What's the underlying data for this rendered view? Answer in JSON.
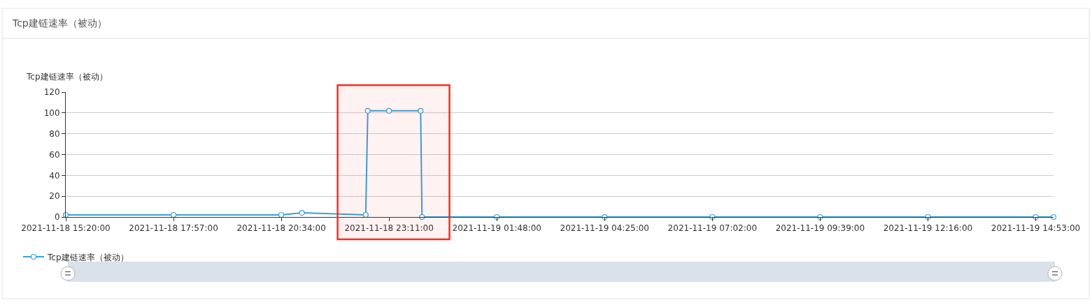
{
  "chart_data": {
    "type": "line",
    "title": "Tcp建链速率（被动）",
    "ylabel": "Tcp建链速率（被动）",
    "x": [
      "2021-11-18T15:20",
      "2021-11-18T17:57",
      "2021-11-18T20:34",
      "2021-11-18T21:04",
      "2021-11-18T22:37",
      "2021-11-18T22:40",
      "2021-11-18T23:11",
      "2021-11-18T23:57",
      "2021-11-18T23:59",
      "2021-11-19T01:48",
      "2021-11-19T04:25",
      "2021-11-19T07:02",
      "2021-11-19T09:39",
      "2021-11-19T12:16",
      "2021-11-19T14:53",
      "2021-11-19T15:19"
    ],
    "series": [
      {
        "name": "Tcp建链速率（被动）",
        "color": "#37a2da",
        "values": [
          2,
          2,
          2,
          4,
          2,
          102,
          102,
          102,
          0,
          0,
          0,
          0,
          0,
          0,
          0,
          0
        ]
      }
    ],
    "xlim": [
      "2021-11-18T15:20",
      "2021-11-19T15:19"
    ],
    "xticks": [
      {
        "value": "2021-11-18T15:20",
        "label": "2021-11-18 15:20:00"
      },
      {
        "value": "2021-11-18T17:57",
        "label": "2021-11-18 17:57:00"
      },
      {
        "value": "2021-11-18T20:34",
        "label": "2021-11-18 20:34:00"
      },
      {
        "value": "2021-11-18T23:11",
        "label": "2021-11-18 23:11:00"
      },
      {
        "value": "2021-11-19T01:48",
        "label": "2021-11-19 01:48:00"
      },
      {
        "value": "2021-11-19T04:25",
        "label": "2021-11-19 04:25:00"
      },
      {
        "value": "2021-11-19T07:02",
        "label": "2021-11-19 07:02:00"
      },
      {
        "value": "2021-11-19T09:39",
        "label": "2021-11-19 09:39:00"
      },
      {
        "value": "2021-11-19T12:16",
        "label": "2021-11-19 12:16:00"
      },
      {
        "value": "2021-11-19T14:53",
        "label": "2021-11-19 14:53:00"
      }
    ],
    "ylim": [
      0,
      120
    ],
    "yticks": [
      0,
      20,
      40,
      60,
      80,
      100,
      120
    ],
    "grid": "y",
    "legend": "bottom left",
    "marker": "circle",
    "line_style": "solid",
    "bands": [
      {
        "axis": "x",
        "from": "2021-11-18T21:56",
        "to": "2021-11-19T00:39",
        "color": "#ff2a1a"
      }
    ]
  }
}
